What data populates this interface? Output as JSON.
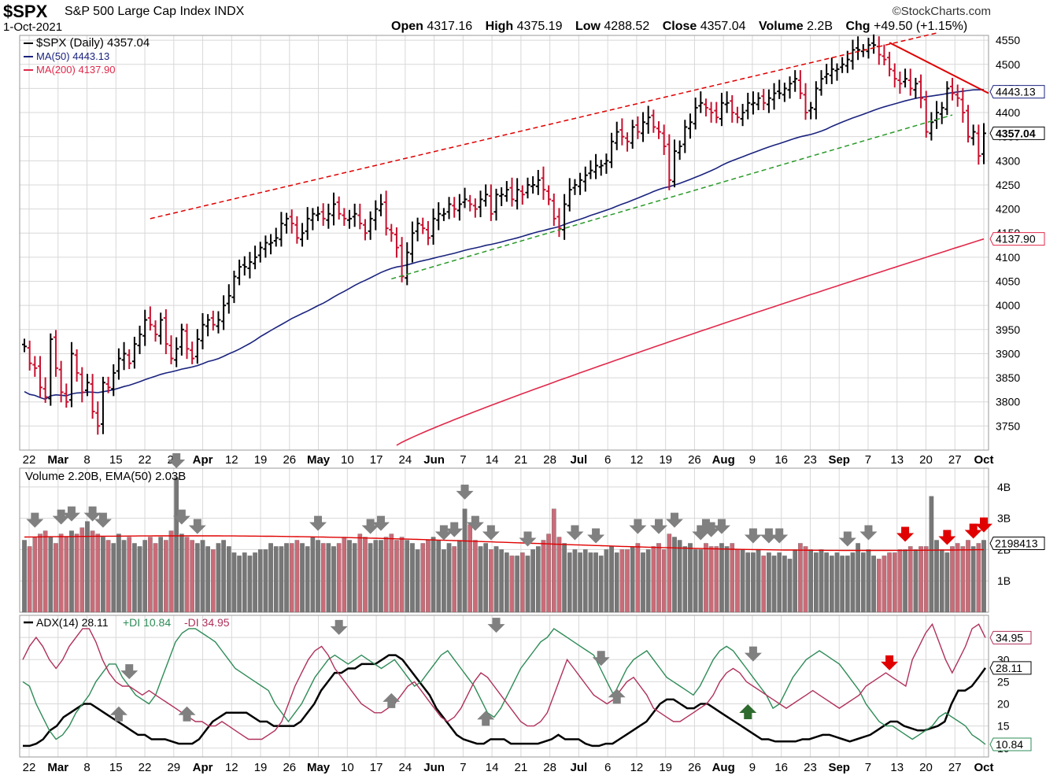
{
  "header": {
    "symbol": "$SPX",
    "description": "S&P 500 Large Cap Index INDX",
    "date": "1-Oct-2021",
    "brand": "©StockCharts.com",
    "open_label": "Open",
    "open": "4317.16",
    "high_label": "High",
    "high": "4375.19",
    "low_label": "Low",
    "low": "4288.52",
    "close_label": "Close",
    "close": "4357.04",
    "volume_label": "Volume",
    "volume": "2.2B",
    "chg_label": "Chg",
    "chg": "+49.50 (+1.15%)"
  },
  "colors": {
    "up": "#000000",
    "down": "#c8102e",
    "ma50": "#1a237e",
    "ma200": "#e0284a",
    "vol_up": "#777777",
    "vol_down": "#c96c78",
    "adx": "#000000",
    "pdi": "#2e8b57",
    "mdi": "#b0305a",
    "grid": "#d8d8d8",
    "arrow_gray": "#808080",
    "arrow_red": "#e00000",
    "arrow_green": "#2e6b2e",
    "trend_red": "#e00000",
    "trend_green": "#2a9a2a"
  },
  "chart_data": [
    {
      "type": "ohlc",
      "title": "$SPX (Daily) 4357.04",
      "legend": [
        {
          "name": "$SPX (Daily) 4357.04"
        },
        {
          "name": "MA(50) 4443.13"
        },
        {
          "name": "MA(200) 4137.90"
        }
      ],
      "ylim": [
        3700,
        4560
      ],
      "yticks": [
        3750,
        3800,
        3850,
        3900,
        3950,
        4000,
        4050,
        4100,
        4150,
        4200,
        4250,
        4300,
        4350,
        4400,
        4450,
        4500,
        4550
      ],
      "x_labels": [
        "22",
        "Mar",
        "8",
        "15",
        "22",
        "29",
        "Apr",
        "12",
        "19",
        "26",
        "May",
        "10",
        "17",
        "24",
        "Jun",
        "7",
        "14",
        "21",
        "28",
        "Jul",
        "6",
        "12",
        "19",
        "26",
        "Aug",
        "9",
        "16",
        "23",
        "Sep",
        "7",
        "13",
        "20",
        "27",
        "Oct"
      ],
      "price_badges": [
        {
          "label": "4443.13",
          "value": 4443.13,
          "style": "ma50"
        },
        {
          "label": "4357.04",
          "value": 4357.04,
          "style": "close"
        },
        {
          "label": "4137.90",
          "value": 4137.9,
          "style": "ma200"
        }
      ],
      "closes": [
        3915,
        3880,
        3870,
        3830,
        3810,
        3930,
        3870,
        3820,
        3800,
        3900,
        3860,
        3820,
        3840,
        3780,
        3750,
        3840,
        3830,
        3860,
        3890,
        3900,
        3880,
        3920,
        3940,
        3970,
        3960,
        3940,
        3970,
        3920,
        3890,
        3910,
        3950,
        3910,
        3890,
        3930,
        3960,
        3970,
        3960,
        3970,
        4000,
        4020,
        4060,
        4080,
        4080,
        4090,
        4100,
        4120,
        4130,
        4130,
        4140,
        4170,
        4180,
        4170,
        4140,
        4150,
        4180,
        4190,
        4190,
        4180,
        4190,
        4210,
        4190,
        4180,
        4180,
        4190,
        4170,
        4150,
        4180,
        4200,
        4210,
        4160,
        4150,
        4120,
        4060,
        4110,
        4150,
        4170,
        4160,
        4140,
        4180,
        4190,
        4190,
        4210,
        4200,
        4210,
        4220,
        4210,
        4200,
        4220,
        4230,
        4190,
        4230,
        4230,
        4240,
        4220,
        4240,
        4230,
        4250,
        4250,
        4260,
        4240,
        4220,
        4180,
        4160,
        4210,
        4240,
        4250,
        4260,
        4270,
        4280,
        4290,
        4290,
        4300,
        4340,
        4360,
        4350,
        4340,
        4370,
        4360,
        4380,
        4390,
        4370,
        4360,
        4330,
        4260,
        4320,
        4330,
        4370,
        4380,
        4410,
        4420,
        4410,
        4400,
        4390,
        4420,
        4420,
        4400,
        4390,
        4400,
        4420,
        4420,
        4430,
        4420,
        4430,
        4440,
        4440,
        4450,
        4460,
        4470,
        4440,
        4400,
        4410,
        4450,
        4470,
        4480,
        4490,
        4490,
        4500,
        4510,
        4530,
        4530,
        4530,
        4540,
        4540,
        4520,
        4510,
        4490,
        4470,
        4460,
        4470,
        4450,
        4460,
        4430,
        4360,
        4380,
        4400,
        4410,
        4450,
        4440,
        4430,
        4400,
        4350,
        4360,
        4310,
        4357
      ],
      "ma50_start": 3790,
      "ma50_end": 4443.13,
      "ma200_start": 3710,
      "ma200_end": 4137.9
    },
    {
      "type": "bar",
      "title": "Volume 2.20B, EMA(50) 2.03B",
      "ylim": [
        0,
        4.6
      ],
      "ytick_labels": [
        "1B",
        "2B",
        "3B",
        "4B"
      ],
      "yticks": [
        1,
        2,
        3,
        4
      ],
      "badge_label": "2198413",
      "badge_value": 2.2,
      "ema_start": 2.4,
      "ema_end": 2.03,
      "up_flags_note": "",
      "values": [
        2.3,
        2.1,
        2.4,
        2.5,
        2.6,
        2.4,
        2.2,
        2.5,
        2.4,
        2.6,
        2.5,
        2.7,
        2.9,
        2.6,
        2.5,
        2.4,
        2.3,
        2.2,
        2.5,
        2.3,
        2.4,
        2.2,
        2.1,
        2.3,
        2.4,
        2.2,
        2.4,
        2.3,
        2.6,
        4.3,
        2.5,
        2.4,
        2.3,
        2.2,
        2.3,
        2.1,
        2.0,
        2.2,
        2.3,
        2.1,
        1.9,
        1.8,
        1.9,
        1.8,
        1.9,
        2.0,
        2.0,
        2.2,
        2.1,
        2.1,
        2.2,
        2.2,
        2.3,
        2.2,
        2.1,
        2.4,
        2.3,
        2.2,
        2.2,
        2.1,
        2.2,
        2.4,
        2.3,
        2.2,
        2.5,
        2.4,
        2.2,
        2.3,
        2.3,
        2.4,
        2.5,
        2.3,
        2.4,
        2.3,
        2.2,
        2.0,
        2.2,
        2.3,
        2.4,
        2.3,
        2.0,
        2.2,
        2.1,
        2.3,
        3.3,
        2.8,
        2.3,
        2.1,
        2.2,
        2.0,
        2.1,
        2.0,
        1.9,
        1.8,
        1.8,
        1.9,
        1.8,
        2.0,
        2.1,
        2.3,
        2.5,
        3.3,
        2.4,
        2.2,
        1.9,
        2.0,
        1.9,
        2.0,
        1.9,
        1.9,
        1.8,
        2.0,
        2.1,
        1.9,
        2.0,
        2.0,
        2.1,
        2.2,
        1.9,
        2.0,
        2.1,
        2.2,
        2.0,
        2.5,
        2.4,
        2.3,
        2.1,
        2.2,
        2.0,
        2.0,
        2.2,
        2.1,
        2.1,
        2.2,
        2.1,
        2.2,
        2.0,
        2.0,
        1.9,
        1.9,
        2.0,
        1.8,
        1.9,
        1.8,
        1.9,
        1.8,
        1.7,
        2.0,
        2.2,
        2.1,
        2.0,
        1.9,
        2.0,
        1.9,
        1.8,
        1.9,
        1.8,
        1.8,
        1.9,
        2.2,
        1.9,
        2.0,
        1.8,
        1.7,
        1.8,
        1.9,
        1.9,
        2.0,
        2.0,
        2.1,
        2.0,
        2.1,
        2.1,
        3.7,
        2.3,
        2.0,
        1.9,
        2.1,
        2.2,
        2.1,
        2.3,
        2.1,
        2.2,
        2.3,
        2.2
      ]
    },
    {
      "type": "line",
      "title": "ADX(14) 28.11 +DI 10.84 -DI 34.95",
      "legend": [
        {
          "name": "ADX(14) 28.11"
        },
        {
          "name": "+DI 10.84"
        },
        {
          "name": "-DI 34.95"
        }
      ],
      "ylim": [
        8,
        40
      ],
      "yticks": [
        10,
        15,
        20,
        25,
        30,
        35
      ],
      "badges": [
        {
          "label": "34.95",
          "value": 34.95,
          "style": "mdi"
        },
        {
          "label": "28.11",
          "value": 28.11,
          "style": "adx"
        },
        {
          "label": "10.84",
          "value": 10.84,
          "style": "pdi"
        }
      ],
      "series": [
        {
          "name": "ADX(14)",
          "values": [
            10.5,
            10.5,
            11,
            12,
            14,
            15,
            17,
            18,
            19,
            20,
            20,
            19,
            18,
            17,
            16,
            15,
            14,
            13,
            13,
            12,
            12,
            12,
            11.5,
            11,
            11,
            11,
            12,
            14,
            16,
            17,
            18,
            18,
            18,
            18,
            17,
            16,
            16,
            15,
            15,
            15,
            15,
            16,
            18,
            20,
            23,
            25,
            27,
            27,
            28,
            28,
            29,
            29,
            29,
            30,
            31,
            31,
            30,
            28,
            26,
            24,
            22,
            19,
            17,
            15,
            13,
            12,
            11.5,
            11,
            11,
            12,
            12,
            12,
            11,
            11,
            11,
            11,
            11,
            11.5,
            12,
            13,
            12,
            12,
            12,
            11,
            10.5,
            10.5,
            11,
            11,
            12,
            13,
            14,
            15,
            16,
            18,
            20,
            21,
            21,
            20,
            19,
            19,
            20,
            20,
            19,
            18,
            17,
            16,
            15,
            14,
            13,
            12,
            12,
            11.5,
            11.5,
            11.5,
            11.5,
            12,
            12,
            12.5,
            13,
            13,
            12.5,
            12,
            11.5,
            12,
            12.5,
            13,
            14,
            15,
            16,
            16,
            15,
            14.5,
            14,
            14,
            14.5,
            15,
            16,
            20,
            23,
            23,
            24,
            26,
            28.11
          ]
        },
        {
          "name": "+DI",
          "values": [
            25,
            24,
            20,
            17,
            14,
            12,
            13,
            15,
            18,
            20,
            22,
            25,
            27,
            29,
            29,
            26,
            24,
            22,
            21,
            20,
            22,
            26,
            30,
            34,
            36,
            37,
            37,
            36,
            35,
            34,
            32,
            30,
            28,
            27,
            26,
            25,
            24,
            23,
            20,
            18,
            16,
            18,
            20,
            23,
            26,
            28,
            30,
            31,
            30,
            29,
            30,
            31,
            30,
            29,
            28,
            29,
            30,
            28,
            26,
            24,
            25,
            27,
            29,
            31,
            32,
            30,
            28,
            26,
            24,
            21,
            18,
            17,
            19,
            22,
            25,
            28,
            30,
            32,
            34,
            35,
            37,
            36,
            35,
            34,
            33,
            32,
            31,
            28,
            25,
            22,
            25,
            28,
            30,
            31,
            32,
            30,
            28,
            26,
            25,
            24,
            23,
            22,
            24,
            27,
            30,
            32,
            33,
            32,
            30,
            28,
            26,
            24,
            22,
            19,
            20,
            23,
            26,
            28,
            30,
            31,
            32,
            31,
            30,
            29,
            27,
            25,
            23,
            20,
            18,
            16,
            15,
            15,
            14,
            13,
            12,
            13,
            14,
            15,
            17,
            18,
            17,
            16,
            15,
            13,
            12,
            10.84
          ]
        },
        {
          "name": "-DI",
          "values": [
            30,
            33,
            35,
            33,
            30,
            28,
            30,
            33,
            35,
            37,
            37,
            34,
            30,
            27,
            25,
            24,
            24,
            23,
            22,
            23,
            22,
            21,
            20,
            19,
            18,
            17,
            16,
            16,
            15,
            15,
            16,
            15,
            14,
            13,
            12,
            12,
            12,
            13,
            14,
            16,
            20,
            24,
            27,
            30,
            32,
            33,
            31,
            28,
            26,
            24,
            22,
            20,
            19,
            18,
            18,
            19,
            20,
            22,
            24,
            25,
            23,
            21,
            19,
            17,
            16,
            17,
            19,
            22,
            25,
            27,
            26,
            24,
            22,
            20,
            18,
            16,
            15,
            15,
            16,
            18,
            22,
            26,
            30,
            28,
            26,
            24,
            22,
            21,
            20,
            21,
            23,
            25,
            26,
            24,
            22,
            19,
            18,
            17,
            16,
            16,
            17,
            18,
            19,
            20,
            22,
            25,
            27,
            28,
            27,
            25,
            24,
            23,
            22,
            21,
            20,
            19,
            20,
            21,
            22,
            23,
            22,
            21,
            20,
            19,
            20,
            21,
            22,
            24,
            25,
            26,
            27,
            26,
            25,
            24,
            30,
            33,
            36,
            38,
            34,
            30,
            27,
            30,
            33,
            37,
            38,
            34.95
          ]
        }
      ]
    }
  ]
}
